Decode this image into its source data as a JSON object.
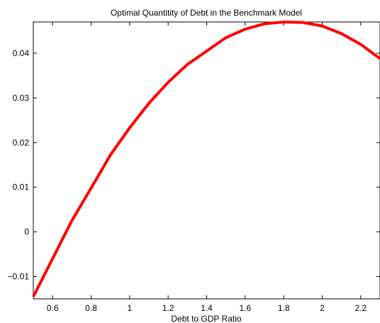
{
  "chart_data": {
    "type": "line",
    "title": "Optimal Quantitity of Debt in the Benchmark Model",
    "xlabel": "Debt to GDP Ratio",
    "ylabel": "",
    "xlim": [
      0.5,
      2.3
    ],
    "ylim": [
      -0.015,
      0.047
    ],
    "x_ticks": [
      0.6,
      0.8,
      1,
      1.2,
      1.4,
      1.6,
      1.8,
      2,
      2.2
    ],
    "x_tick_labels": [
      "0.6",
      "0.8",
      "1",
      "1.2",
      "1.4",
      "1.6",
      "1.8",
      "2",
      "2.2"
    ],
    "y_ticks": [
      -0.01,
      0,
      0.01,
      0.02,
      0.03,
      0.04
    ],
    "y_tick_labels": [
      "−0.01",
      "0",
      "0.01",
      "0.02",
      "0.03",
      "0.04"
    ],
    "grid": false,
    "series": [
      {
        "color": "#ff0000",
        "x": [
          0.5,
          0.6,
          0.7,
          0.8,
          0.9,
          1.0,
          1.1,
          1.2,
          1.3,
          1.4,
          1.5,
          1.6,
          1.7,
          1.8,
          1.9,
          2.0,
          2.1,
          2.2,
          2.3
        ],
        "y": [
          -0.0145,
          -0.006,
          0.0025,
          0.0098,
          0.0172,
          0.0233,
          0.0288,
          0.0335,
          0.0375,
          0.0405,
          0.0435,
          0.0454,
          0.0466,
          0.047,
          0.0469,
          0.0461,
          0.0444,
          0.042,
          0.0388
        ]
      }
    ]
  }
}
